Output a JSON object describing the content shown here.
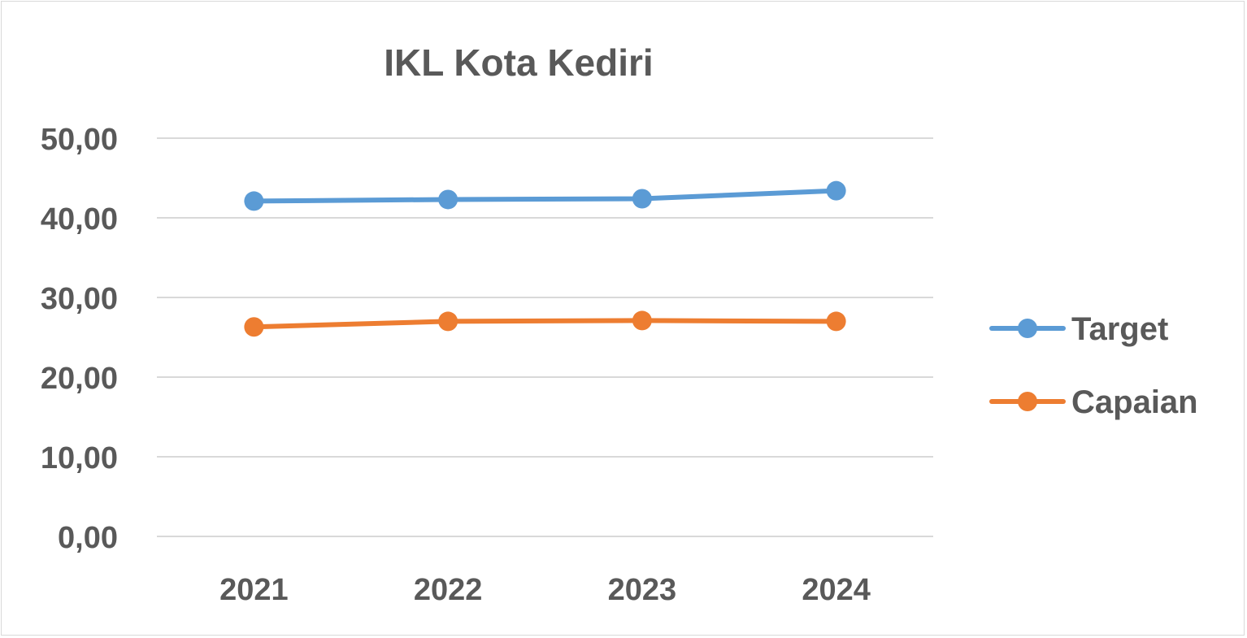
{
  "chart_data": {
    "type": "line",
    "title": "IKL Kota Kediri",
    "xlabel": "",
    "ylabel": "",
    "categories": [
      "2021",
      "2022",
      "2023",
      "2024"
    ],
    "ylim": [
      0,
      50
    ],
    "yticks": [
      "0,00",
      "10,00",
      "20,00",
      "30,00",
      "40,00",
      "50,00"
    ],
    "grid": true,
    "legend_position": "right",
    "series": [
      {
        "name": "Target",
        "values": [
          42.1,
          42.3,
          42.4,
          43.4
        ],
        "color": "#5b9bd5"
      },
      {
        "name": "Capaian",
        "values": [
          26.3,
          27.0,
          27.1,
          27.0
        ],
        "color": "#ed7d31"
      }
    ]
  }
}
